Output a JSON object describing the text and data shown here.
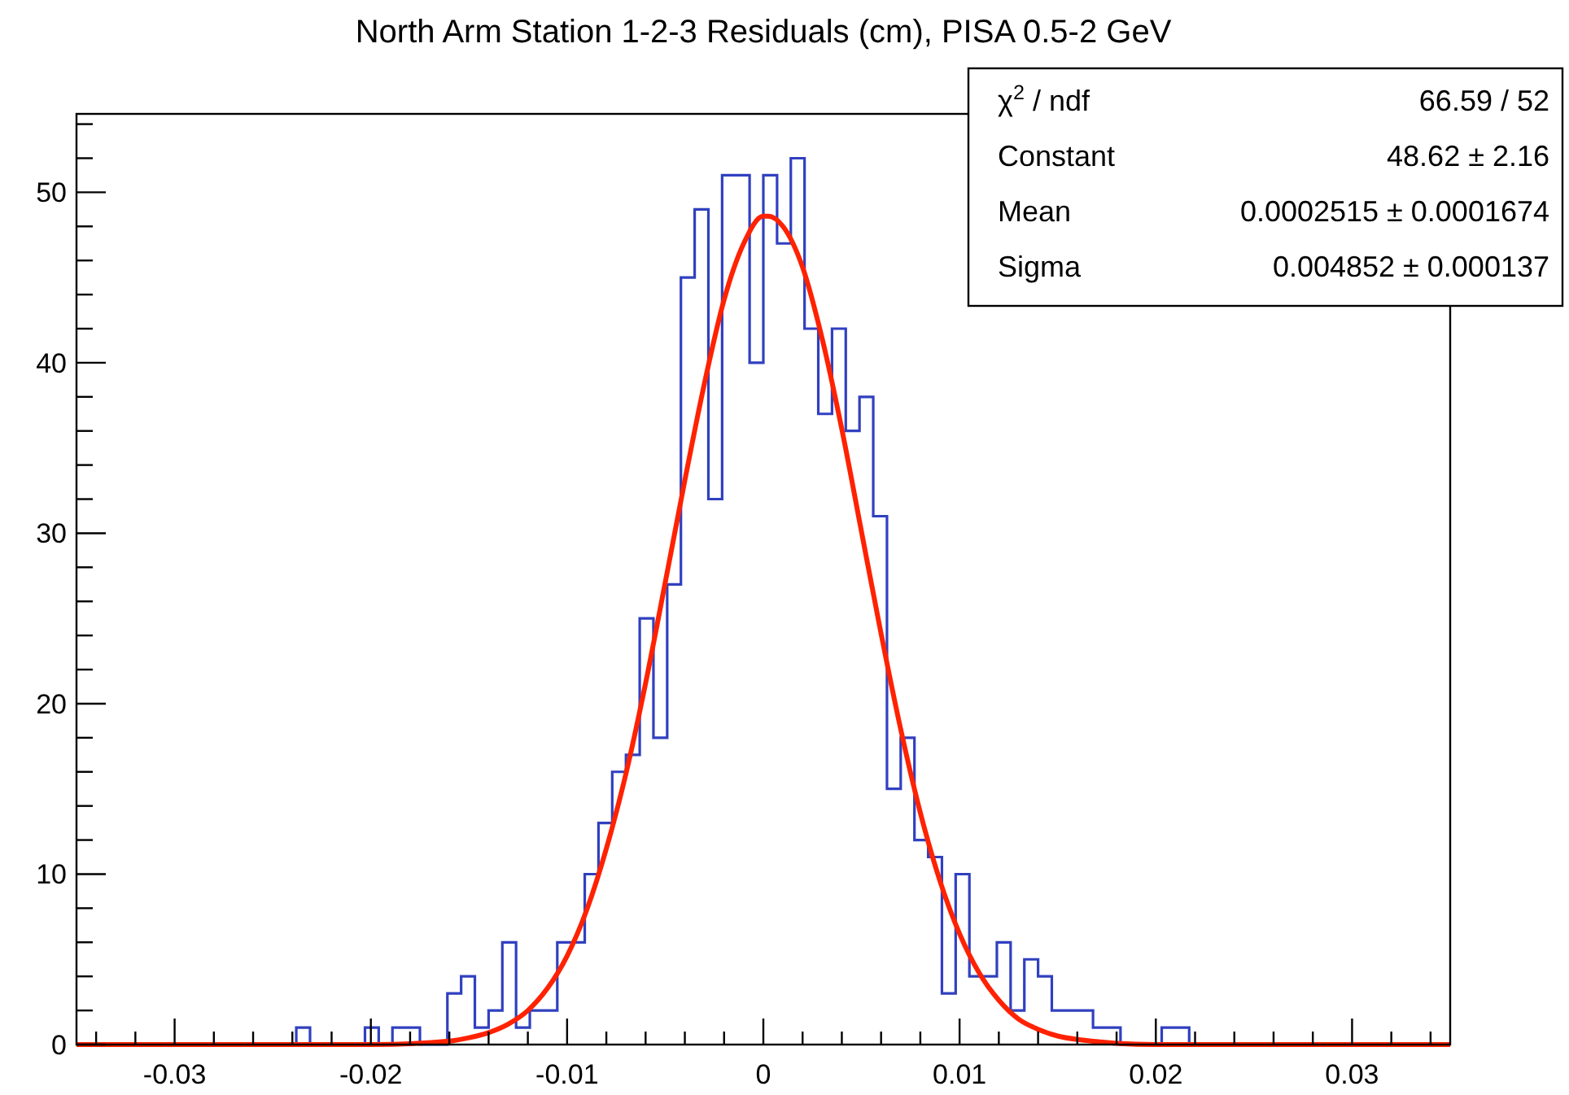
{
  "chart_data": {
    "type": "histogram",
    "title": "North Arm Station 1-2-3 Residuals (cm), PISA 0.5-2 GeV",
    "bins": [
      -0.035,
      -0.0343,
      -0.0336,
      -0.0329,
      -0.0322,
      -0.0315,
      -0.0308,
      -0.0301,
      -0.0294,
      -0.0287,
      -0.028,
      -0.0273,
      -0.0266,
      -0.0259,
      -0.0252,
      -0.0245,
      -0.0238,
      -0.0231,
      -0.0224,
      -0.0217,
      -0.021,
      -0.0203,
      -0.0196,
      -0.0189,
      -0.0182,
      -0.0175,
      -0.0168,
      -0.0161,
      -0.0154,
      -0.0147,
      -0.014,
      -0.0133,
      -0.0126,
      -0.0119,
      -0.0112,
      -0.0105,
      -0.0098,
      -0.0091,
      -0.0084,
      -0.0077,
      -0.007,
      -0.0063,
      -0.0056,
      -0.0049,
      -0.0042,
      -0.0035,
      -0.0028,
      -0.0021,
      -0.0014,
      -0.0007,
      0,
      0.0007,
      0.0014,
      0.0021,
      0.0028,
      0.0035,
      0.0042,
      0.0049,
      0.0056,
      0.0063,
      0.007,
      0.0077,
      0.0084,
      0.0091,
      0.0098,
      0.0105,
      0.0112,
      0.0119,
      0.0126,
      0.0133,
      0.014,
      0.0147,
      0.0154,
      0.0161,
      0.0168,
      0.0175,
      0.0182,
      0.0189,
      0.0196,
      0.0203,
      0.021,
      0.0217,
      0.0224,
      0.0231,
      0.0238,
      0.0245,
      0.0252,
      0.0259,
      0.0266,
      0.0273,
      0.028,
      0.0287,
      0.0294,
      0.0301,
      0.0308,
      0.0315,
      0.0322,
      0.0329,
      0.0336,
      0.0343,
      0.035
    ],
    "series": [
      {
        "color": "#3040c0",
        "values": [
          0,
          0,
          0,
          0,
          0,
          0,
          0,
          0,
          0,
          0,
          0,
          0,
          0,
          0,
          0,
          0,
          1,
          0,
          0,
          0,
          0,
          1,
          0,
          1,
          1,
          0,
          0,
          3,
          4,
          1,
          2,
          6,
          1,
          2,
          2,
          6,
          6,
          10,
          13,
          16,
          17,
          25,
          18,
          27,
          45,
          49,
          32,
          51,
          51,
          40,
          51,
          47,
          52,
          42,
          37,
          42,
          36,
          38,
          31,
          15,
          18,
          12,
          11,
          3,
          10,
          4,
          4,
          6,
          2,
          5,
          4,
          2,
          2,
          2,
          1,
          1,
          0,
          0,
          0,
          1,
          1,
          0,
          0,
          0,
          0,
          0,
          0,
          0,
          0,
          0,
          0,
          0,
          0,
          0,
          0,
          0,
          0,
          0,
          0,
          0
        ]
      },
      {
        "type": "line",
        "color": "#ff2200",
        "x": [
          -0.035,
          -0.02,
          -0.016,
          -0.015,
          -0.014,
          -0.013,
          -0.012,
          -0.011,
          -0.01,
          -0.009,
          -0.008,
          -0.007,
          -0.006,
          -0.005,
          -0.004,
          -0.003,
          -0.002,
          -0.001,
          0,
          0.00025,
          0.001,
          0.002,
          0.003,
          0.004,
          0.005,
          0.006,
          0.007,
          0.008,
          0.009,
          0.01,
          0.011,
          0.012,
          0.013,
          0.014,
          0.015,
          0.016,
          0.02,
          0.035
        ],
        "values": [
          0,
          0,
          0.2,
          0.4,
          0.7,
          1.2,
          2,
          3.3,
          5.2,
          7.9,
          11.5,
          15.9,
          21.2,
          27.1,
          33.1,
          38.8,
          43.7,
          47,
          48.6,
          48.6,
          48,
          45.6,
          41.4,
          36.1,
          30.1,
          24.1,
          18.5,
          13.6,
          9.6,
          6.5,
          4.2,
          2.6,
          1.5,
          0.9,
          0.5,
          0.3,
          0,
          0
        ]
      }
    ],
    "xlim": [
      -0.035,
      0.035
    ],
    "xticks": [
      {
        "value": -0.034,
        "label": null
      },
      {
        "value": -0.032,
        "label": null
      },
      -0.03,
      {
        "value": -0.028,
        "label": null
      },
      {
        "value": -0.026,
        "label": null
      },
      {
        "value": -0.024,
        "label": null
      },
      {
        "value": -0.022,
        "label": null
      },
      -0.02,
      {
        "value": -0.018,
        "label": null
      },
      {
        "value": -0.016,
        "label": null
      },
      {
        "value": -0.014,
        "label": null
      },
      {
        "value": -0.012,
        "label": null
      },
      -0.01,
      {
        "value": -0.008,
        "label": null
      },
      {
        "value": -0.006,
        "label": null
      },
      {
        "value": -0.004,
        "label": null
      },
      {
        "value": -0.002,
        "label": null
      },
      0,
      {
        "value": 0.002,
        "label": null
      },
      {
        "value": 0.004,
        "label": null
      },
      {
        "value": 0.006,
        "label": null
      },
      {
        "value": 0.008,
        "label": null
      },
      0.01,
      {
        "value": 0.012,
        "label": null
      },
      {
        "value": 0.014,
        "label": null
      },
      {
        "value": 0.016,
        "label": null
      },
      {
        "value": 0.018,
        "label": null
      },
      0.02,
      {
        "value": 0.022,
        "label": null
      },
      {
        "value": 0.024,
        "label": null
      },
      {
        "value": 0.026,
        "label": null
      },
      {
        "value": 0.028,
        "label": null
      },
      0.03,
      {
        "value": 0.032,
        "label": null
      },
      {
        "value": 0.034,
        "label": null
      }
    ],
    "ylim": [
      0,
      54.6
    ],
    "yticks": [
      0,
      {
        "value": 2,
        "label": null
      },
      {
        "value": 4,
        "label": null
      },
      {
        "value": 6,
        "label": null
      },
      {
        "value": 8,
        "label": null
      },
      10,
      {
        "value": 12,
        "label": null
      },
      {
        "value": 14,
        "label": null
      },
      {
        "value": 16,
        "label": null
      },
      {
        "value": 18,
        "label": null
      },
      20,
      {
        "value": 22,
        "label": null
      },
      {
        "value": 24,
        "label": null
      },
      {
        "value": 26,
        "label": null
      },
      {
        "value": 28,
        "label": null
      },
      30,
      {
        "value": 32,
        "label": null
      },
      {
        "value": 34,
        "label": null
      },
      {
        "value": 36,
        "label": null
      },
      {
        "value": 38,
        "label": null
      },
      40,
      {
        "value": 42,
        "label": null
      },
      {
        "value": 44,
        "label": null
      },
      {
        "value": 46,
        "label": null
      },
      {
        "value": 48,
        "label": null
      },
      50,
      {
        "value": 52,
        "label": null
      },
      {
        "value": 54,
        "label": null
      }
    ],
    "annotations": [
      "χ$^{2}$ / ndf",
      "66.59 / 52",
      "Constant",
      "48.62 ± 2.16",
      "Mean",
      "0.0002515 ± 0.0001674",
      "Sigma",
      "0.004852 ± 0.000137"
    ],
    "grid": false
  }
}
